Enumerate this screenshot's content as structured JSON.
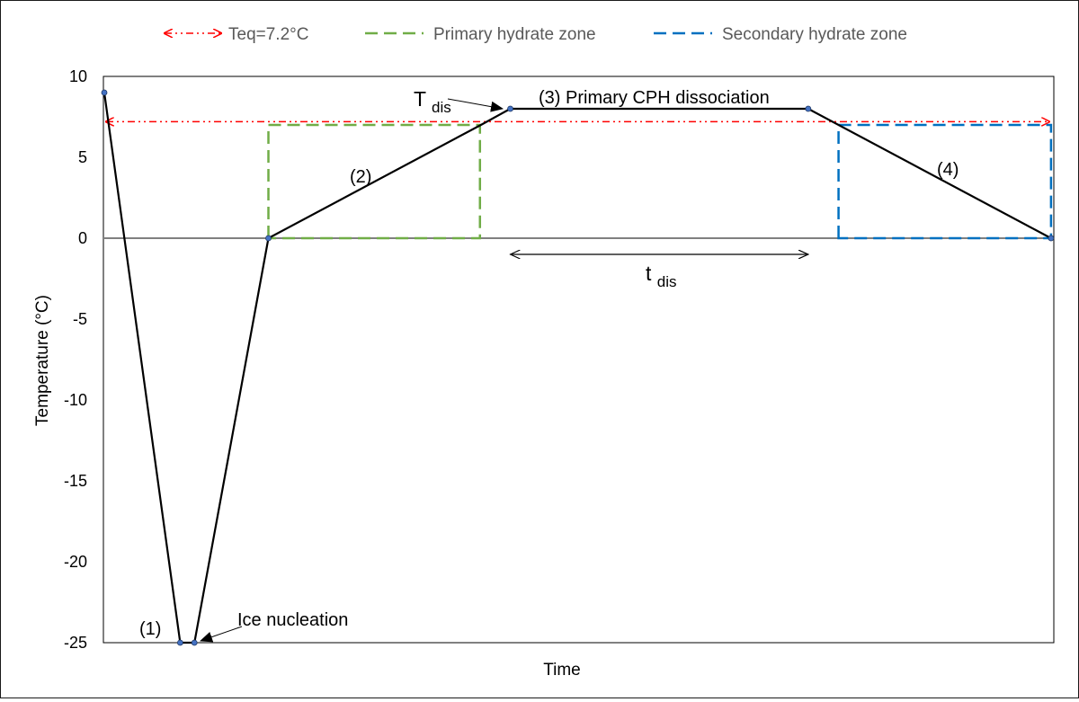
{
  "chart_data": {
    "type": "line",
    "title": "",
    "xlabel": "Time",
    "ylabel": "Temperature (°C)",
    "ylim": [
      -25,
      10
    ],
    "xlim": [
      0,
      1
    ],
    "yticks": [
      10,
      5,
      0,
      -5,
      -10,
      -15,
      -20,
      -25
    ],
    "ytick_labels": [
      "10",
      "5",
      "0",
      "-5",
      "-10",
      "-15",
      "-20",
      "-25"
    ],
    "grid": false,
    "legend_position": "top",
    "colors": {
      "main": "#000000",
      "teq": "#ff0000",
      "primary": "#70ad47",
      "secondary": "#0070c0",
      "marker": "#4472c4"
    },
    "legend": [
      {
        "label": "Teq=7.2°C",
        "style": "dash-dot-dot",
        "color": "#ff0000"
      },
      {
        "label": "Primary hydrate zone",
        "style": "dashed",
        "color": "#70ad47"
      },
      {
        "label": "Secondary hydrate zone",
        "style": "dashed",
        "color": "#0070c0"
      }
    ],
    "series": [
      {
        "x": [
          0.0,
          0.08,
          0.095,
          0.173,
          0.397,
          0.428,
          0.742,
          0.998
        ],
        "y": [
          9.0,
          -25.0,
          -25.0,
          0.0,
          7.0,
          8.0,
          8.0,
          0.0
        ]
      }
    ],
    "teq_line": {
      "y": 7.2,
      "x": [
        0.0,
        0.998
      ]
    },
    "primary_zone": {
      "x": [
        0.173,
        0.396
      ],
      "y": [
        0,
        7
      ]
    },
    "secondary_zone": {
      "x": [
        0.774,
        0.998
      ],
      "y": [
        0,
        7
      ]
    },
    "annotations": {
      "step1": "(1)",
      "ice_nucleation": "Ice nucleation",
      "step2": "(2)",
      "t_dis_main": "T",
      "t_dis_sub": "dis",
      "step3": "(3) Primary CPH dissociation",
      "step4": "(4)",
      "tdis_main": "t",
      "tdis_sub": "dis"
    },
    "tdis_span": {
      "x": [
        0.428,
        0.742
      ],
      "y": -1.0
    }
  }
}
